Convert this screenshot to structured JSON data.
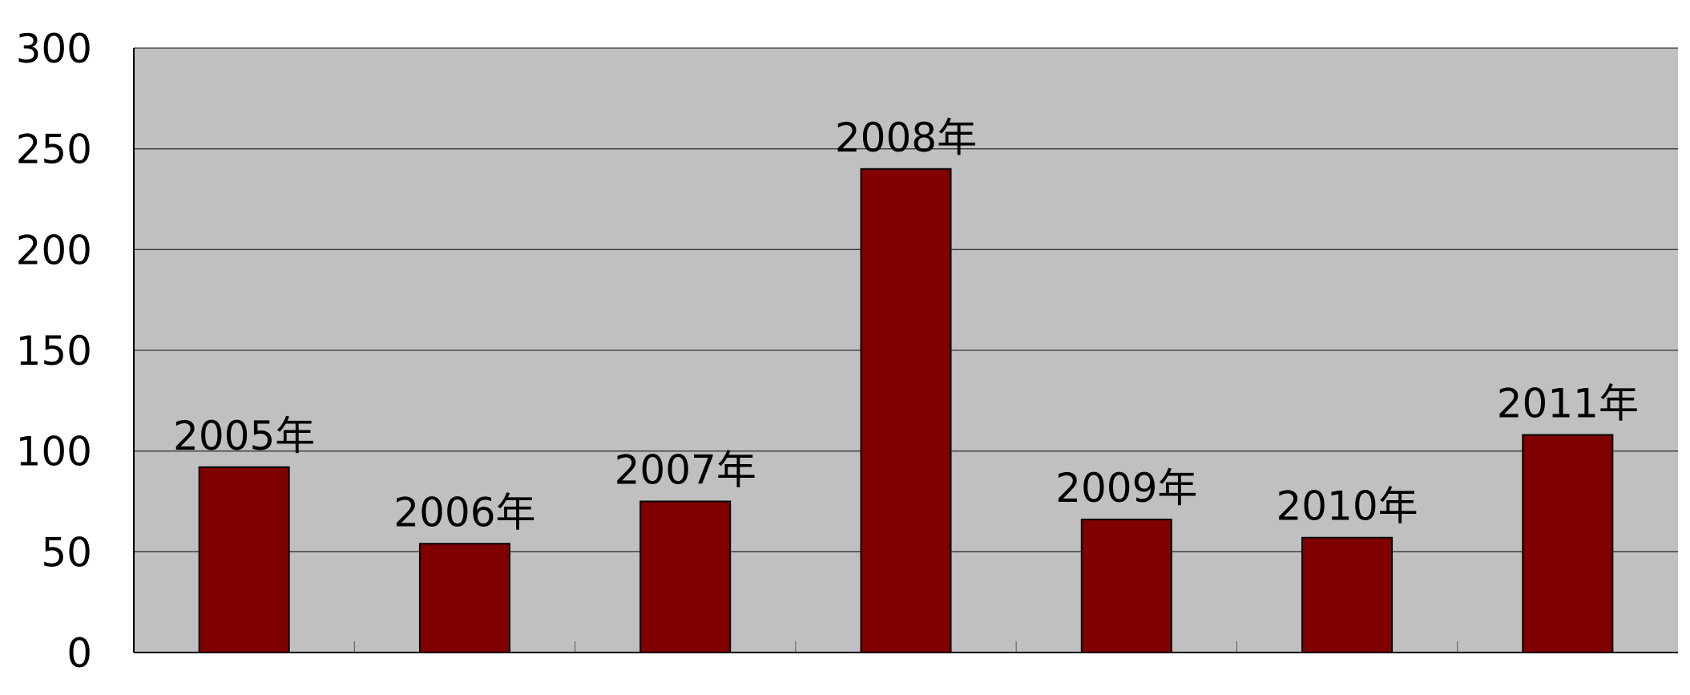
{
  "chart_data": {
    "type": "bar",
    "categories": [
      "2005年",
      "2006年",
      "2007年",
      "2008年",
      "2009年",
      "2010年",
      "2011年"
    ],
    "values": [
      92,
      54,
      75,
      240,
      66,
      57,
      108
    ],
    "data_labels": [
      "2005年",
      "2006年",
      "2007年",
      "2008年",
      "2009年",
      "2010年",
      "2011年"
    ],
    "title": "",
    "xlabel": "",
    "ylabel": "",
    "ylim": [
      0,
      300
    ],
    "yticks": [
      0,
      50,
      100,
      150,
      200,
      250,
      300
    ],
    "grid": true,
    "legend": "none",
    "colors": {
      "bar": "#800000",
      "plot_background": "#c0c0c0",
      "gridline": "#000000"
    }
  }
}
